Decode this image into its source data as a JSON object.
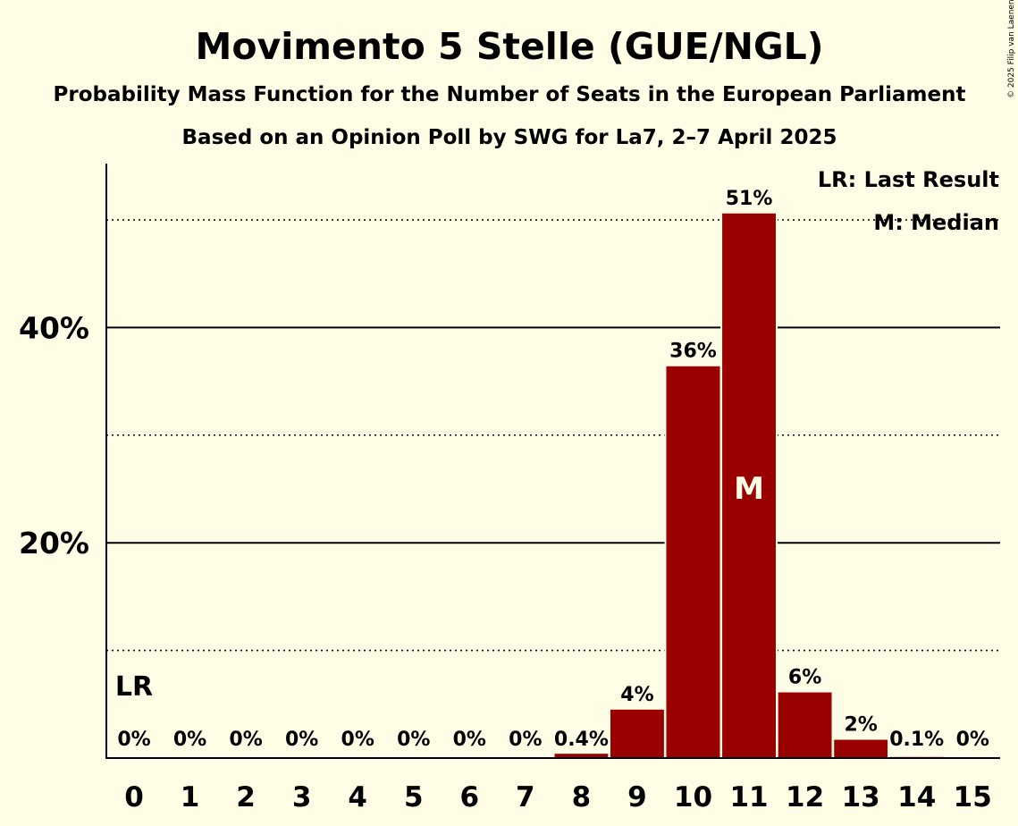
{
  "chart_data": {
    "type": "bar",
    "title": "Movimento 5 Stelle (GUE/NGL)",
    "subtitle": "Probability Mass Function for the Number of Seats in the European Parliament",
    "subtitle2": "Based on an Opinion Poll by SWG for La7, 2–7 April 2025",
    "copyright": "© 2025 Filip van Laenen",
    "categories": [
      "0",
      "1",
      "2",
      "3",
      "4",
      "5",
      "6",
      "7",
      "8",
      "9",
      "10",
      "11",
      "12",
      "13",
      "14",
      "15"
    ],
    "values": [
      0,
      0,
      0,
      0,
      0,
      0,
      0,
      0,
      0.4,
      4.5,
      36.4,
      50.6,
      6.1,
      1.7,
      0.1,
      0
    ],
    "labels": [
      "0%",
      "0%",
      "0%",
      "0%",
      "0%",
      "0%",
      "0%",
      "0%",
      "0.4%",
      "4%",
      "36%",
      "51%",
      "6%",
      "2%",
      "0.1%",
      "0%"
    ],
    "ylim": [
      0,
      55
    ],
    "yticks": [
      {
        "value": 20,
        "label": "20%"
      },
      {
        "value": 40,
        "label": "40%"
      }
    ],
    "dotted_gridlines": [
      10,
      30,
      50
    ],
    "last_result_index": 0,
    "last_result_label": "LR",
    "median_index": 11,
    "median_label": "M",
    "legend": [
      "LR: Last Result",
      "M: Median"
    ],
    "bar_color": "#990000",
    "xlabel": "",
    "ylabel": ""
  }
}
